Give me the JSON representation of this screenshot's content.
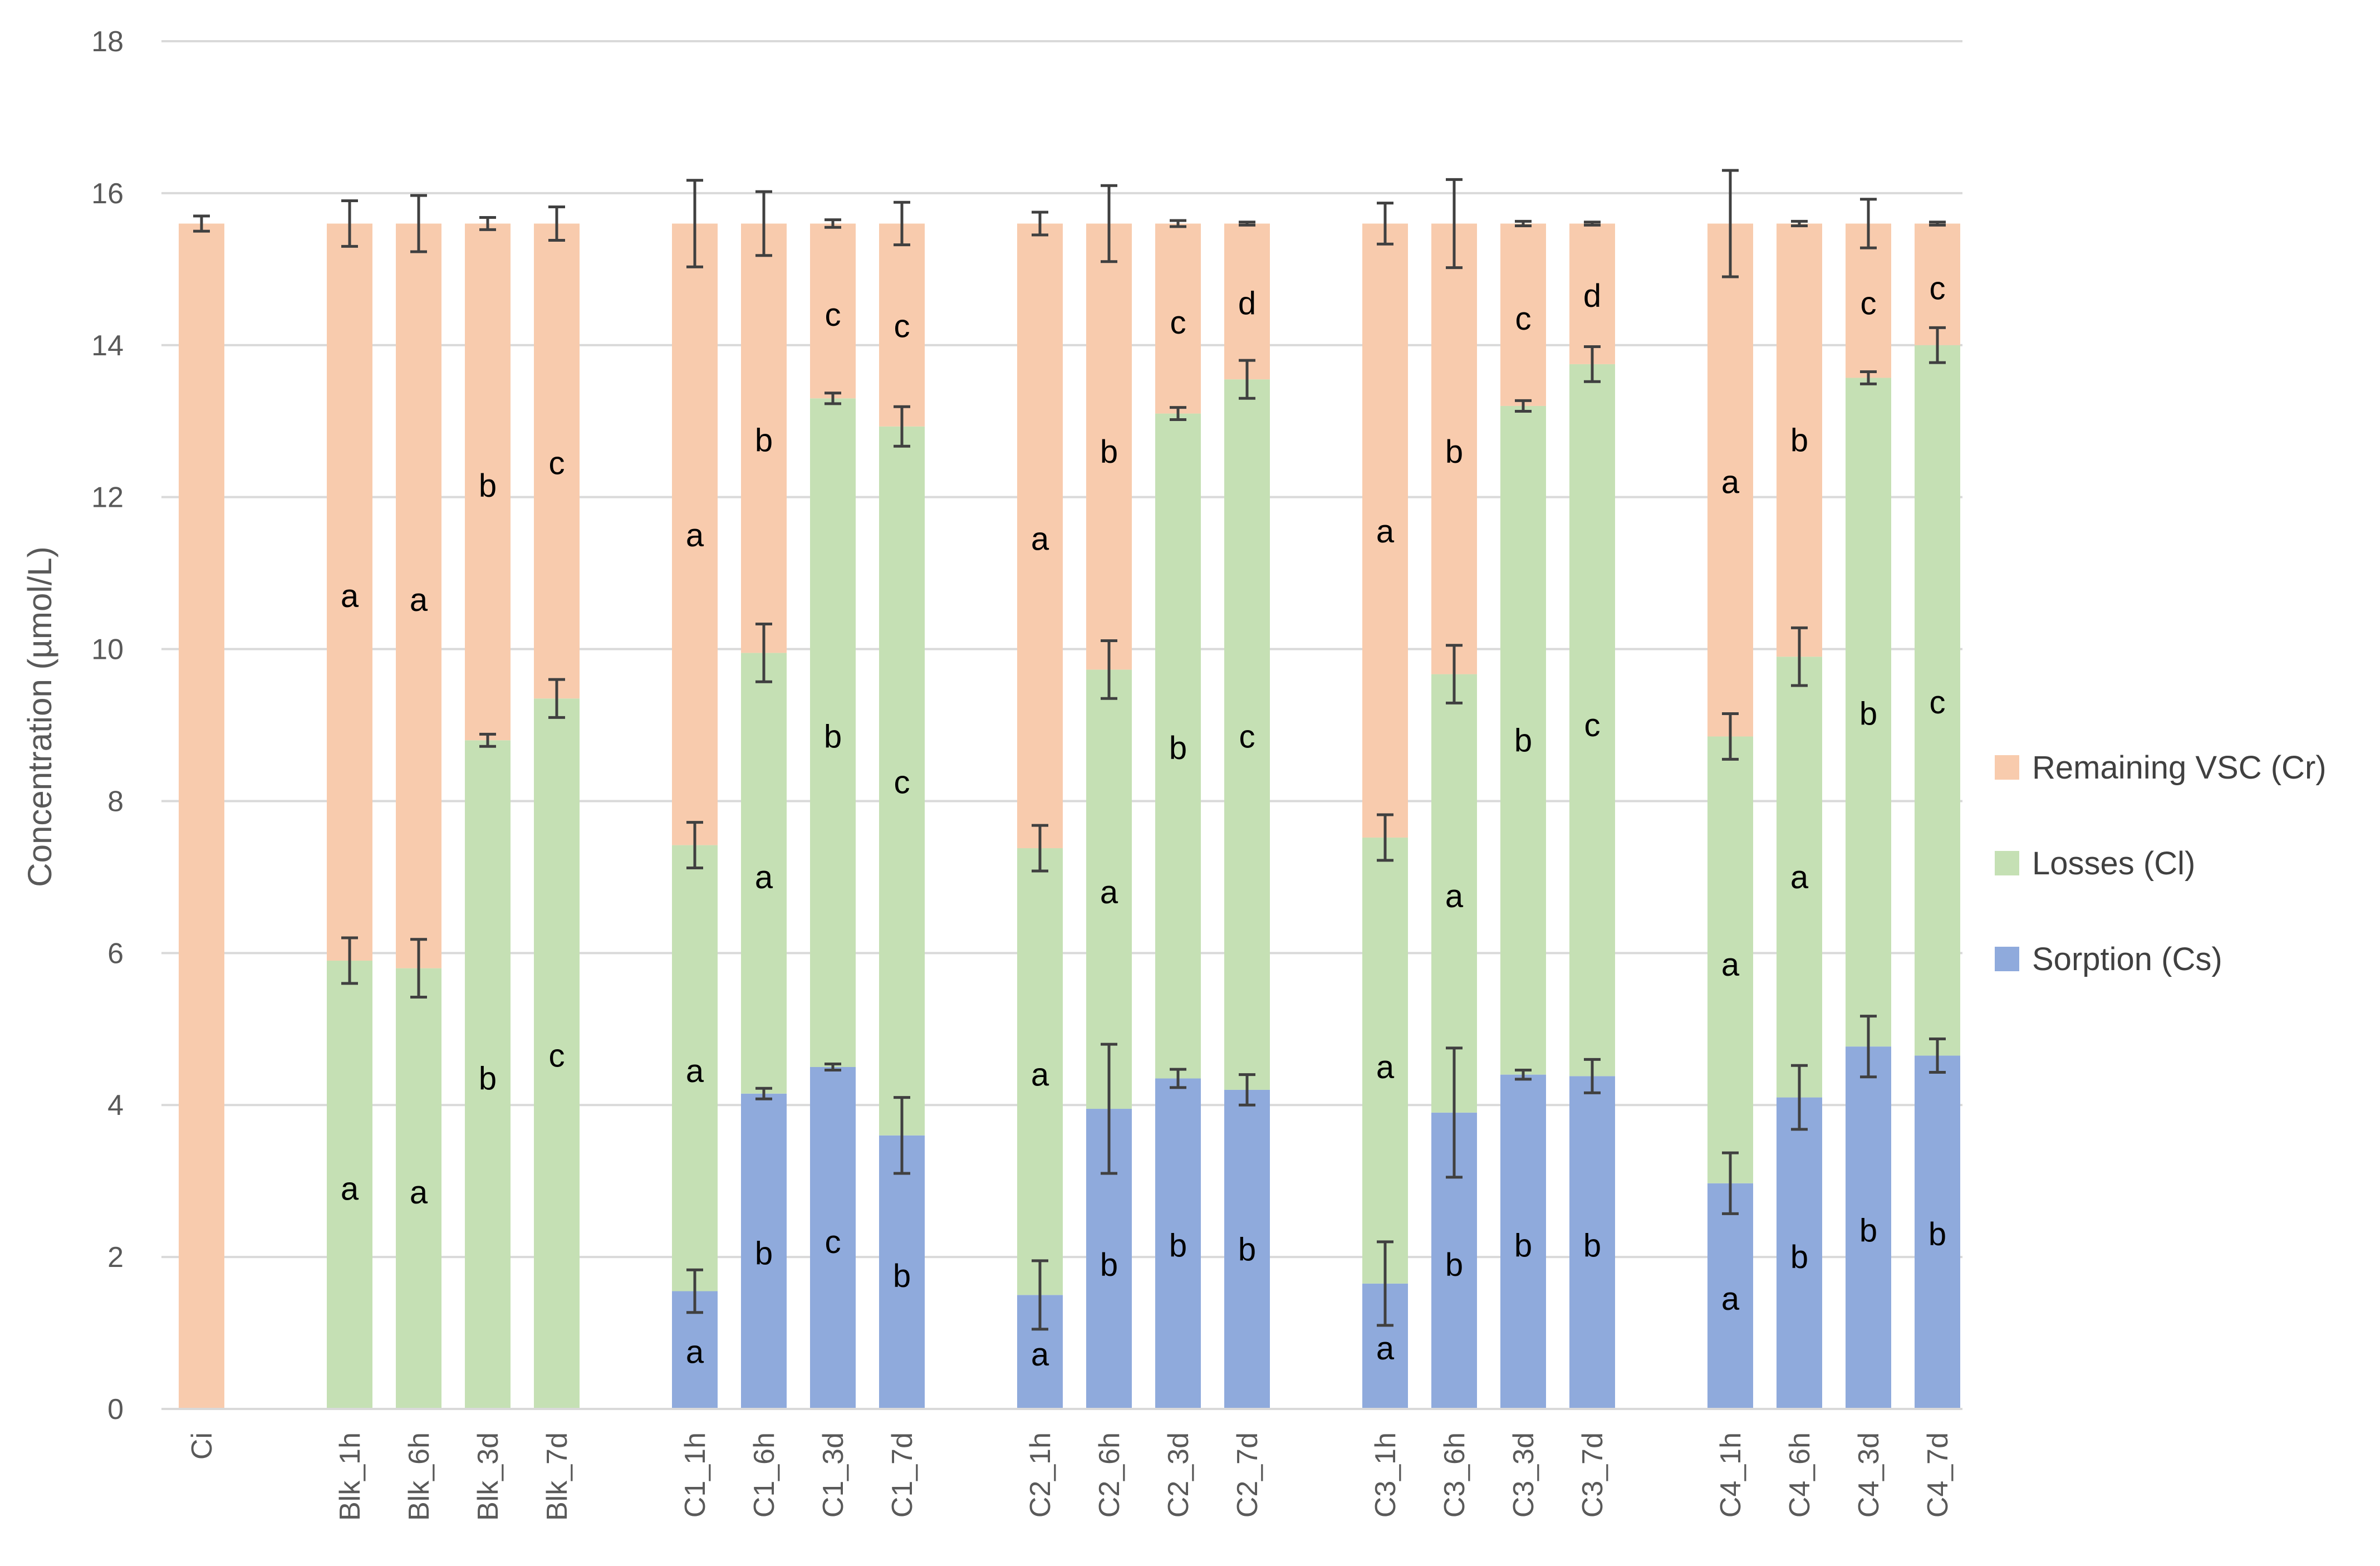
{
  "chart_data": {
    "type": "bar",
    "stacked": true,
    "title": "",
    "xlabel": "",
    "ylabel": "Concentration (µmol/L)",
    "ylim": [
      0,
      18
    ],
    "yticks": [
      0,
      2,
      4,
      6,
      8,
      10,
      12,
      14,
      16,
      18
    ],
    "grid": true,
    "legend_position": "right",
    "categories": [
      "Ci",
      "Blk_1h",
      "Blk_6h",
      "Blk_3d",
      "Blk_7d",
      "C1_1h",
      "C1_6h",
      "C1_3d",
      "C1_7d",
      "C2_1h",
      "C2_6h",
      "C2_3d",
      "C2_7d",
      "C3_1h",
      "C3_6h",
      "C3_3d",
      "C3_7d",
      "C4_1h",
      "C4_6h",
      "C4_3d",
      "C4_7d"
    ],
    "groups": [
      [
        0
      ],
      [
        1,
        2,
        3,
        4
      ],
      [
        5,
        6,
        7,
        8
      ],
      [
        9,
        10,
        11,
        12
      ],
      [
        13,
        14,
        15,
        16
      ],
      [
        17,
        18,
        19,
        20
      ]
    ],
    "series": [
      {
        "name": "Sorption (Cs)",
        "color": "#8FAADC",
        "values": [
          0,
          0,
          0,
          0,
          0,
          1.55,
          4.15,
          4.5,
          3.6,
          1.5,
          3.95,
          4.35,
          4.2,
          1.65,
          3.9,
          4.4,
          4.38,
          2.97,
          4.1,
          4.77,
          4.65
        ],
        "errors": [
          null,
          null,
          null,
          null,
          null,
          0.28,
          0.07,
          0.04,
          0.5,
          0.45,
          0.85,
          0.12,
          0.2,
          0.55,
          0.85,
          0.06,
          0.22,
          0.4,
          0.42,
          0.4,
          0.22
        ],
        "labels": [
          "",
          "",
          "",
          "",
          "",
          "a",
          "b",
          "c",
          "b",
          "a",
          "b",
          "b",
          "b",
          "a",
          "b",
          "b",
          "b",
          "a",
          "b",
          "b",
          "b"
        ],
        "label_values": [
          0,
          0,
          0,
          0,
          0,
          0.75,
          2.05,
          2.2,
          1.75,
          0.72,
          1.9,
          2.15,
          2.1,
          0.8,
          1.9,
          2.15,
          2.15,
          1.45,
          2.0,
          2.35,
          2.3
        ]
      },
      {
        "name": "Losses (Cl)",
        "color": "#C5E0B4",
        "values": [
          0,
          5.9,
          5.8,
          8.8,
          9.35,
          5.87,
          5.8,
          8.8,
          9.33,
          5.88,
          5.78,
          8.75,
          9.35,
          5.87,
          5.77,
          8.8,
          9.37,
          5.88,
          5.8,
          8.8,
          9.35
        ],
        "errors": [
          null,
          0.3,
          0.38,
          0.08,
          0.25,
          0.3,
          0.38,
          0.07,
          0.26,
          0.3,
          0.38,
          0.08,
          0.25,
          0.3,
          0.38,
          0.07,
          0.23,
          0.3,
          0.38,
          0.08,
          0.23
        ],
        "labels": [
          "",
          "a",
          "a",
          "b",
          "c",
          "a",
          "a",
          "b",
          "c",
          "a",
          "a",
          "b",
          "c",
          "a",
          "a",
          "b",
          "c",
          "a",
          "a",
          "b",
          "c"
        ],
        "label_values": [
          0,
          2.9,
          2.85,
          4.35,
          4.65,
          4.45,
          7.0,
          8.85,
          8.25,
          4.4,
          6.8,
          8.7,
          8.85,
          4.5,
          6.75,
          8.8,
          9.0,
          5.85,
          7.0,
          9.15,
          9.3
        ]
      },
      {
        "name": "Remaining VSC (Cr)",
        "color": "#F8CBAD",
        "values": [
          15.6,
          9.7,
          9.8,
          6.8,
          6.25,
          8.18,
          5.65,
          2.3,
          2.67,
          8.22,
          5.87,
          2.5,
          2.05,
          8.08,
          5.93,
          2.4,
          1.85,
          6.75,
          5.7,
          2.03,
          1.6
        ],
        "errors": [
          0.1,
          0.3,
          0.37,
          0.08,
          0.22,
          0.57,
          0.42,
          0.05,
          0.28,
          0.15,
          0.5,
          0.04,
          0.02,
          0.27,
          0.58,
          0.03,
          0.02,
          0.7,
          0.03,
          0.32,
          0.02
        ],
        "labels": [
          "",
          "a",
          "a",
          "b",
          "c",
          "a",
          "b",
          "c",
          "c",
          "a",
          "b",
          "c",
          "d",
          "a",
          "b",
          "c",
          "d",
          "a",
          "b",
          "c",
          "c"
        ],
        "label_values": [
          0,
          10.7,
          10.65,
          12.15,
          12.45,
          11.5,
          12.75,
          14.4,
          14.25,
          11.45,
          12.6,
          14.3,
          14.55,
          11.55,
          12.6,
          14.35,
          14.65,
          12.2,
          12.75,
          14.55,
          14.75
        ]
      }
    ],
    "legend_order": [
      "Remaining VSC (Cr)",
      "Losses (Cl)",
      "Sorption (Cs)"
    ]
  }
}
